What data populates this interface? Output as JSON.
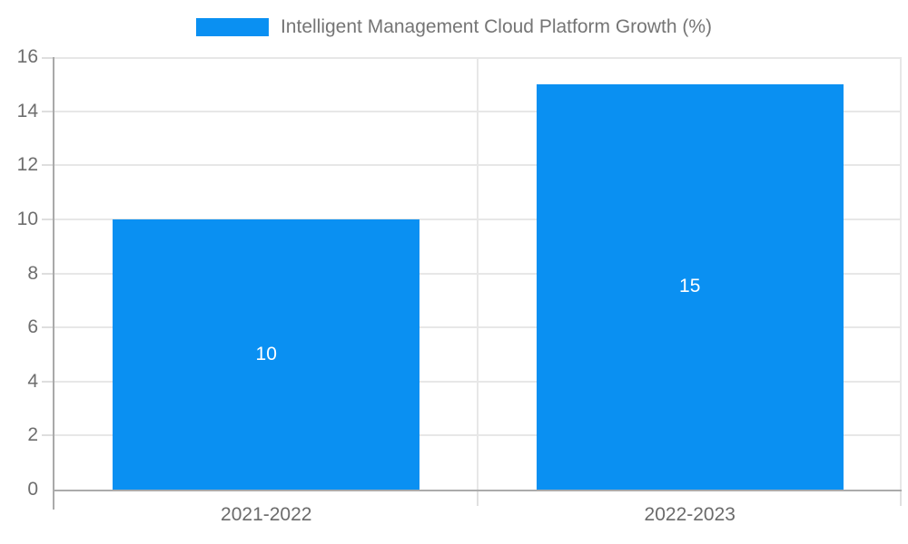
{
  "chart_data": {
    "type": "bar",
    "title": "Intelligent Management Cloud Platform Growth (%)",
    "categories": [
      "2021-2022",
      "2022-2023"
    ],
    "values": [
      10,
      15
    ],
    "bar_labels": [
      "10",
      "15"
    ],
    "xlabel": "",
    "ylabel": "",
    "ylim": [
      0,
      16
    ],
    "ytick_step": 2,
    "yticks": [
      0,
      2,
      4,
      6,
      8,
      10,
      12,
      14,
      16
    ],
    "grid": true,
    "legend_position": "top-center",
    "bar_width_ratio": 0.725,
    "colors": {
      "bar": "#0A90F2",
      "grid": "#e7e7e7",
      "axis": "#ababab",
      "tick_label": "#6e6e6e",
      "legend_text": "#757575",
      "bar_label": "#ffffff",
      "background": "#ffffff"
    }
  }
}
